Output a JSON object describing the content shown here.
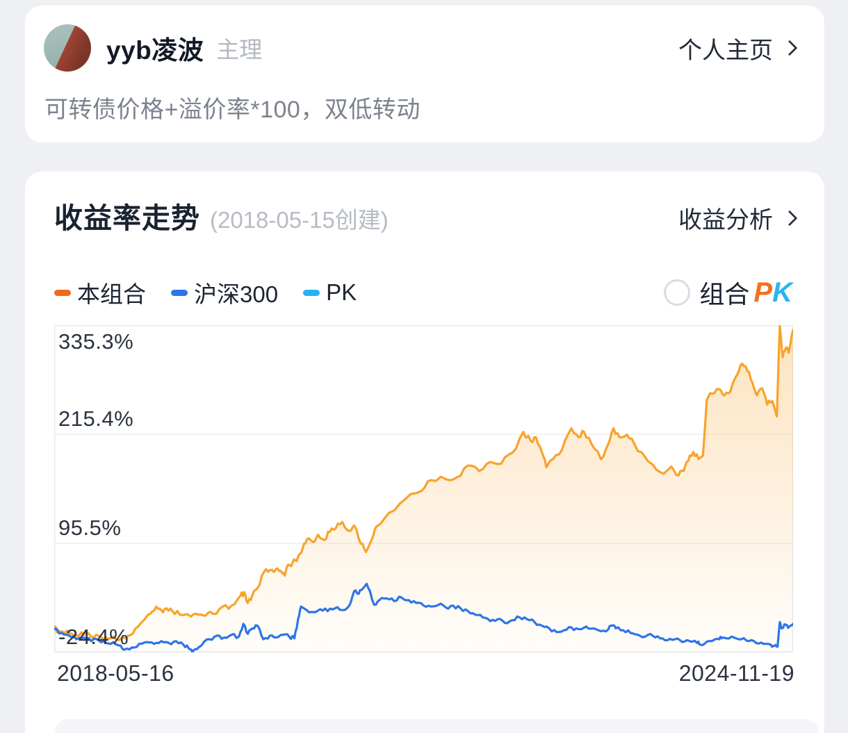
{
  "profile": {
    "name": "yyb凌波",
    "role": "主理",
    "home_link": "个人主页",
    "description": "可转债价格+溢价率*100，双低转动",
    "avatar_icon": "bridge-photo-avatar",
    "chevron_icon": "chevron-right"
  },
  "chart_card": {
    "title": "收益率走势",
    "subtitle": "(2018-05-15创建)",
    "analysis_link": "收益分析",
    "chevron_icon": "chevron-right",
    "legend": [
      {
        "label": "本组合",
        "color": "#f3691c"
      },
      {
        "label": "沪深300",
        "color": "#2f74e8"
      },
      {
        "label": "PK",
        "color": "#28b1ef"
      }
    ],
    "pk_toggle": {
      "state": "off",
      "label": "组合",
      "pk_p": "P",
      "pk_k": "K",
      "p_color": "#f4711c",
      "k_color": "#29b4f2"
    }
  },
  "chart_data": {
    "type": "line",
    "title": "收益率走势",
    "unit": "%",
    "grid": true,
    "legend_position": "top-left",
    "ylim": [
      -24.4,
      335.3
    ],
    "y_ticks": [
      335.3,
      215.4,
      95.5,
      -24.4
    ],
    "y_tick_labels": [
      "335.3%",
      "215.4%",
      "95.5%",
      "-24.4%"
    ],
    "x_axis": {
      "start_label": "2018-05-16",
      "end_label": "2024-11-19"
    },
    "series": [
      {
        "name": "本组合",
        "color": "#f8a32b",
        "fill": true,
        "fill_color": "#f8a32b",
        "noise": 3.2,
        "points": [
          [
            0,
            2
          ],
          [
            0.005,
            0
          ],
          [
            0.012,
            -2
          ],
          [
            0.02,
            -4
          ],
          [
            0.03,
            -6
          ],
          [
            0.04,
            -5
          ],
          [
            0.05,
            -7
          ],
          [
            0.06,
            -6
          ],
          [
            0.07,
            -8
          ],
          [
            0.08,
            -7
          ],
          [
            0.091,
            -9
          ],
          [
            0.1,
            -6
          ],
          [
            0.11,
            2
          ],
          [
            0.12,
            10
          ],
          [
            0.13,
            18
          ],
          [
            0.138,
            26
          ],
          [
            0.145,
            22
          ],
          [
            0.152,
            24
          ],
          [
            0.16,
            21
          ],
          [
            0.17,
            17
          ],
          [
            0.185,
            15
          ],
          [
            0.195,
            17
          ],
          [
            0.205,
            16
          ],
          [
            0.215,
            18
          ],
          [
            0.228,
            26
          ],
          [
            0.24,
            27
          ],
          [
            0.252,
            38
          ],
          [
            0.257,
            42
          ],
          [
            0.262,
            30
          ],
          [
            0.268,
            38
          ],
          [
            0.275,
            46
          ],
          [
            0.284,
            64
          ],
          [
            0.292,
            66
          ],
          [
            0.3,
            67
          ],
          [
            0.307,
            65
          ],
          [
            0.312,
            60
          ],
          [
            0.317,
            72
          ],
          [
            0.328,
            76
          ],
          [
            0.338,
            95
          ],
          [
            0.344,
            101
          ],
          [
            0.35,
            97
          ],
          [
            0.357,
            105
          ],
          [
            0.366,
            99
          ],
          [
            0.373,
            108
          ],
          [
            0.381,
            112
          ],
          [
            0.39,
            119
          ],
          [
            0.4,
            109
          ],
          [
            0.406,
            115
          ],
          [
            0.415,
            95
          ],
          [
            0.422,
            86
          ],
          [
            0.43,
            100
          ],
          [
            0.436,
            114
          ],
          [
            0.453,
            129
          ],
          [
            0.475,
            144
          ],
          [
            0.497,
            153
          ],
          [
            0.51,
            165
          ],
          [
            0.53,
            166
          ],
          [
            0.545,
            168
          ],
          [
            0.56,
            181
          ],
          [
            0.575,
            175
          ],
          [
            0.59,
            185
          ],
          [
            0.605,
            183
          ],
          [
            0.62,
            195
          ],
          [
            0.635,
            218
          ],
          [
            0.645,
            208
          ],
          [
            0.652,
            212
          ],
          [
            0.66,
            196
          ],
          [
            0.666,
            179
          ],
          [
            0.675,
            188
          ],
          [
            0.687,
            198
          ],
          [
            0.7,
            222
          ],
          [
            0.71,
            212
          ],
          [
            0.717,
            218
          ],
          [
            0.727,
            205
          ],
          [
            0.74,
            188
          ],
          [
            0.75,
            205
          ],
          [
            0.757,
            222
          ],
          [
            0.765,
            212
          ],
          [
            0.775,
            215
          ],
          [
            0.785,
            205
          ],
          [
            0.8,
            190
          ],
          [
            0.81,
            182
          ],
          [
            0.825,
            172
          ],
          [
            0.835,
            180
          ],
          [
            0.845,
            170
          ],
          [
            0.852,
            175
          ],
          [
            0.858,
            186
          ],
          [
            0.865,
            196
          ],
          [
            0.872,
            188
          ],
          [
            0.878,
            192
          ],
          [
            0.883,
            252
          ],
          [
            0.89,
            260
          ],
          [
            0.9,
            265
          ],
          [
            0.907,
            258
          ],
          [
            0.915,
            262
          ],
          [
            0.925,
            282
          ],
          [
            0.931,
            293
          ],
          [
            0.938,
            285
          ],
          [
            0.945,
            272
          ],
          [
            0.951,
            258
          ],
          [
            0.958,
            266
          ],
          [
            0.965,
            248
          ],
          [
            0.972,
            252
          ],
          [
            0.978,
            235
          ],
          [
            0.982,
            335
          ],
          [
            0.986,
            300
          ],
          [
            0.99,
            310
          ],
          [
            0.994,
            305
          ],
          [
            1,
            330
          ]
        ]
      },
      {
        "name": "沪深300",
        "color": "#2f74e8",
        "fill": false,
        "noise": 2.2,
        "points": [
          [
            0,
            1
          ],
          [
            0.01,
            -3
          ],
          [
            0.02,
            -6
          ],
          [
            0.03,
            -10
          ],
          [
            0.04,
            -8
          ],
          [
            0.05,
            -12
          ],
          [
            0.06,
            -11
          ],
          [
            0.07,
            -14
          ],
          [
            0.08,
            -13
          ],
          [
            0.09,
            -17
          ],
          [
            0.096,
            -21
          ],
          [
            0.105,
            -19
          ],
          [
            0.115,
            -15
          ],
          [
            0.125,
            -13
          ],
          [
            0.135,
            -15
          ],
          [
            0.145,
            -12
          ],
          [
            0.155,
            -14
          ],
          [
            0.165,
            -12
          ],
          [
            0.175,
            -16
          ],
          [
            0.182,
            -20
          ],
          [
            0.187,
            -24
          ],
          [
            0.193,
            -21
          ],
          [
            0.2,
            -16
          ],
          [
            0.21,
            -10
          ],
          [
            0.22,
            -6
          ],
          [
            0.23,
            -8
          ],
          [
            0.24,
            -5
          ],
          [
            0.25,
            -7
          ],
          [
            0.256,
            7
          ],
          [
            0.262,
            -4
          ],
          [
            0.268,
            2
          ],
          [
            0.275,
            5
          ],
          [
            0.283,
            -10
          ],
          [
            0.292,
            -6
          ],
          [
            0.3,
            -8
          ],
          [
            0.31,
            -5
          ],
          [
            0.318,
            -7
          ],
          [
            0.325,
            -9
          ],
          [
            0.33,
            12
          ],
          [
            0.334,
            26
          ],
          [
            0.342,
            22
          ],
          [
            0.35,
            20
          ],
          [
            0.36,
            23
          ],
          [
            0.37,
            21
          ],
          [
            0.38,
            24
          ],
          [
            0.39,
            22
          ],
          [
            0.4,
            28
          ],
          [
            0.406,
            43
          ],
          [
            0.412,
            40
          ],
          [
            0.418,
            46
          ],
          [
            0.423,
            51
          ],
          [
            0.429,
            38
          ],
          [
            0.433,
            28
          ],
          [
            0.44,
            33
          ],
          [
            0.45,
            35
          ],
          [
            0.46,
            32
          ],
          [
            0.47,
            36
          ],
          [
            0.48,
            33
          ],
          [
            0.49,
            30
          ],
          [
            0.5,
            27
          ],
          [
            0.51,
            26
          ],
          [
            0.52,
            28
          ],
          [
            0.53,
            25
          ],
          [
            0.54,
            27
          ],
          [
            0.55,
            24
          ],
          [
            0.56,
            21
          ],
          [
            0.57,
            17
          ],
          [
            0.58,
            14
          ],
          [
            0.59,
            10
          ],
          [
            0.6,
            12
          ],
          [
            0.61,
            8
          ],
          [
            0.62,
            11
          ],
          [
            0.63,
            14
          ],
          [
            0.64,
            12
          ],
          [
            0.65,
            9
          ],
          [
            0.66,
            5
          ],
          [
            0.67,
            2
          ],
          [
            0.68,
            -2
          ],
          [
            0.69,
            0
          ],
          [
            0.7,
            3
          ],
          [
            0.71,
            1
          ],
          [
            0.72,
            4
          ],
          [
            0.73,
            2
          ],
          [
            0.74,
            -1
          ],
          [
            0.75,
            1
          ],
          [
            0.755,
            5
          ],
          [
            0.76,
            2
          ],
          [
            0.77,
            0
          ],
          [
            0.78,
            -3
          ],
          [
            0.79,
            -5
          ],
          [
            0.8,
            -7
          ],
          [
            0.81,
            -6
          ],
          [
            0.82,
            -9
          ],
          [
            0.83,
            -11
          ],
          [
            0.84,
            -10
          ],
          [
            0.85,
            -13
          ],
          [
            0.86,
            -12
          ],
          [
            0.87,
            -14
          ],
          [
            0.875,
            -16
          ],
          [
            0.88,
            -15
          ],
          [
            0.89,
            -12
          ],
          [
            0.9,
            -10
          ],
          [
            0.905,
            -8
          ],
          [
            0.91,
            -9
          ],
          [
            0.92,
            -8
          ],
          [
            0.93,
            -10
          ],
          [
            0.94,
            -12
          ],
          [
            0.95,
            -14
          ],
          [
            0.96,
            -15
          ],
          [
            0.97,
            -16
          ],
          [
            0.975,
            -17
          ],
          [
            0.979,
            -18
          ],
          [
            0.982,
            9
          ],
          [
            0.985,
            2
          ],
          [
            0.99,
            6
          ],
          [
            0.995,
            4
          ],
          [
            1,
            7
          ]
        ]
      }
    ],
    "plot_border_color": "#e7e9ee",
    "gridline_color": "#ededf1"
  }
}
